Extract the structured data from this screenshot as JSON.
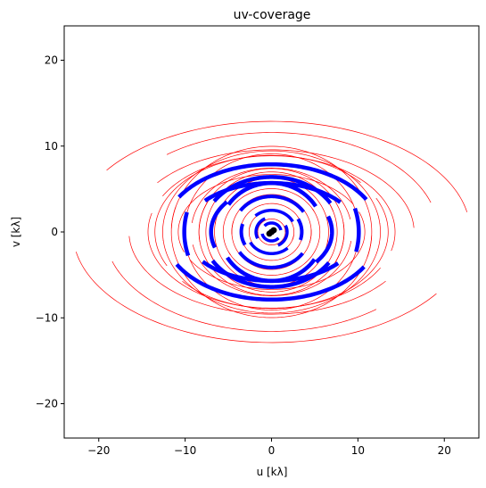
{
  "chart_data": {
    "type": "scatter",
    "title": "uv-coverage",
    "xlabel": "u [kλ]",
    "ylabel": "v [kλ]",
    "xlim": [
      -24,
      24
    ],
    "ylim": [
      -24,
      24
    ],
    "xticks": [
      -20,
      -10,
      0,
      10,
      20
    ],
    "yticks": [
      -20,
      -10,
      0,
      10,
      20
    ],
    "grid": false,
    "series": [
      {
        "color": "#ff0000",
        "arcs": [
          {
            "r": 23,
            "q": 0.56,
            "t0": 0.18,
            "t1": 2.55,
            "w": 0.7,
            "mirror": true
          },
          {
            "r": 19.3,
            "q": 0.6,
            "t0": 0.3,
            "t1": 2.25,
            "w": 0.7,
            "mirror": true
          },
          {
            "r": 16.5,
            "q": 0.58,
            "t0": 0.05,
            "t1": 2.5,
            "w": 0.7,
            "mirror": true
          },
          {
            "r": 14.3,
            "q": 0.62,
            "t0": -0.25,
            "t1": 2.65,
            "w": 0.7,
            "mirror": true
          },
          {
            "r": 13.5,
            "q": 0.66,
            "t0": 0.7,
            "t1": 3.6,
            "w": 0.7,
            "mirror": true
          },
          {
            "r": 12.6,
            "q": 0.75,
            "t0": 0.1,
            "t1": 3.25,
            "w": 0.7,
            "mirror": true
          },
          {
            "r": 11.6,
            "q": 0.86,
            "t0": -0.3,
            "t1": 3.1,
            "w": 0.7,
            "mirror": true
          },
          {
            "r": 10.8,
            "q": 0.62,
            "t0": 0.5,
            "t1": 3.5,
            "w": 0.7,
            "mirror": true
          },
          {
            "r": 10.1,
            "q": 0.9,
            "t0": -0.25,
            "t1": 3.4,
            "w": 0.7,
            "mirror": true
          },
          {
            "r": 9.3,
            "q": 0.8,
            "t0": 0.2,
            "t1": 3.0,
            "w": 0.7,
            "mirror": true
          },
          {
            "r": 8.4,
            "q": 0.88,
            "t0": -0.5,
            "t1": 3.3,
            "w": 0.7,
            "mirror": true
          },
          {
            "r": 7.6,
            "q": 0.92,
            "t0": 0.35,
            "t1": 3.7,
            "w": 0.7,
            "mirror": true
          },
          {
            "r": 6.6,
            "q": 0.95,
            "t0": -0.2,
            "t1": 3.0,
            "w": 0.7,
            "mirror": true
          },
          {
            "r": 5.6,
            "q": 0.9,
            "t0": 0.5,
            "t1": 3.7,
            "w": 0.7,
            "mirror": true
          },
          {
            "r": 4.6,
            "q": 0.95,
            "t0": -0.3,
            "t1": 3.2,
            "w": 0.7,
            "mirror": true
          },
          {
            "r": 3.6,
            "q": 0.92,
            "t0": 0.2,
            "t1": 3.5,
            "w": 0.7,
            "mirror": true
          },
          {
            "r": 2.6,
            "q": 0.95,
            "t0": -0.4,
            "t1": 3.0,
            "w": 0.7,
            "mirror": true
          },
          {
            "r": 1.6,
            "q": 0.95,
            "t0": 0.0,
            "t1": 3.3,
            "w": 0.7,
            "mirror": true
          }
        ]
      },
      {
        "color": "#0000ff",
        "arcs": [
          {
            "r": 12.5,
            "q": 0.63,
            "t0": 0.5,
            "t1": 2.6,
            "w": 4.5,
            "mirror": true
          },
          {
            "r": 10.1,
            "q": 0.92,
            "t0": -0.25,
            "t1": 0.3,
            "w": 4.5,
            "mirror": true
          },
          {
            "r": 10.0,
            "q": 0.57,
            "t0": 0.65,
            "t1": 2.45,
            "w": 4.5,
            "mirror": true
          },
          {
            "r": 8.0,
            "q": 0.8,
            "t0": 0.55,
            "t1": 2.55,
            "w": 4.5,
            "mirror": true
          },
          {
            "r": 7.0,
            "q": 0.74,
            "t0": 2.4,
            "t1": 3.5,
            "w": 4.5,
            "mirror": true
          },
          {
            "r": 6.0,
            "q": 0.95,
            "t0": 0.55,
            "t1": 2.55,
            "w": 4.5,
            "mirror": true
          },
          {
            "r": 4.5,
            "q": 0.92,
            "t0": 0.6,
            "t1": 2.5,
            "w": 4,
            "mirror": true
          },
          {
            "r": 3.5,
            "q": 0.9,
            "t0": -0.3,
            "t1": 0.5,
            "w": 4,
            "mirror": true
          },
          {
            "r": 2.8,
            "q": 0.9,
            "t0": 0.5,
            "t1": 2.3,
            "w": 3.5,
            "mirror": true
          },
          {
            "r": 1.8,
            "q": 0.95,
            "t0": 2.0,
            "t1": 3.6,
            "w": 3.5,
            "mirror": true
          },
          {
            "r": 1.1,
            "q": 0.95,
            "t0": 0.2,
            "t1": 2.4,
            "w": 3.5,
            "mirror": true
          }
        ]
      },
      {
        "color": "#000000",
        "points": [
          [
            0,
            0
          ],
          [
            0.25,
            0.2
          ],
          [
            -0.25,
            -0.2
          ]
        ]
      }
    ]
  }
}
